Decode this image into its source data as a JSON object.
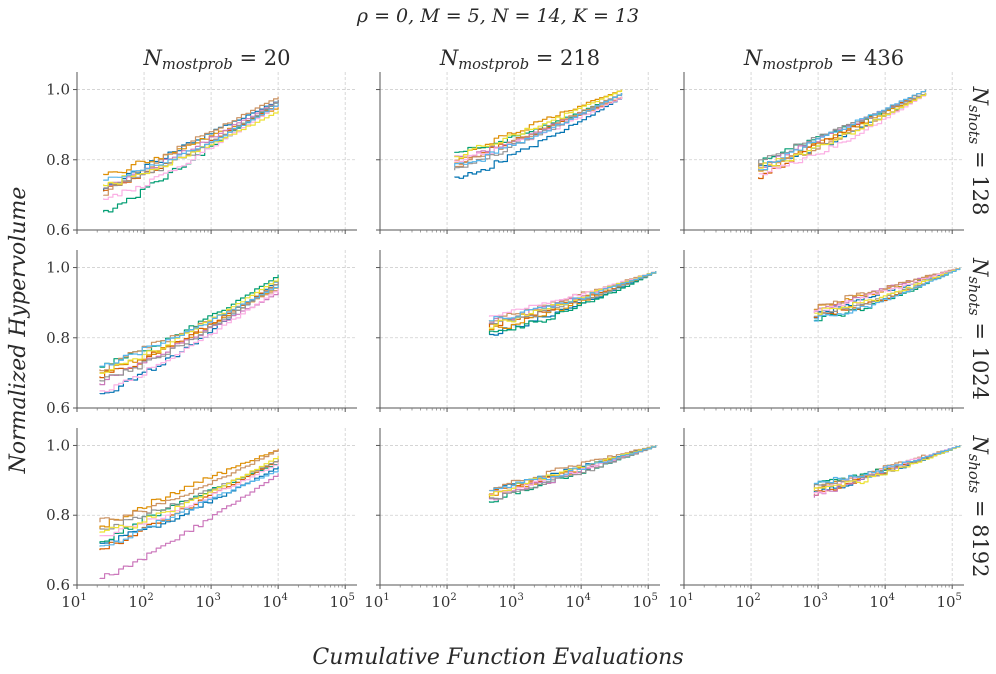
{
  "title": "ρ = 0, M = 5, N = 14, K = 13",
  "xlabel": "Cumulative Function Evaluations",
  "ylabel": "Normalized Hypervolume",
  "col_titles": [
    "N_mostprob = 20",
    "N_mostprob = 218",
    "N_mostprob = 436"
  ],
  "row_titles": [
    "N_shots = 128",
    "N_shots = 1024",
    "N_shots = 8192"
  ],
  "y_ticks": [
    "0.6",
    "0.8",
    "1.0"
  ],
  "x_ticks": [
    "10^1",
    "10^2",
    "10^3",
    "10^4",
    "10^5"
  ],
  "palette": [
    "#0173b2",
    "#de8f05",
    "#029e73",
    "#d55e00",
    "#cc78bc",
    "#ca9161",
    "#fbafe4",
    "#949494",
    "#ece133",
    "#56b4e9"
  ],
  "chart_data": {
    "type": "line",
    "xscale": "log",
    "xlim": [
      10,
      150000
    ],
    "ylim": [
      0.6,
      1.05
    ],
    "grid": true,
    "layout": "3x3 facet grid (rows: N_shots, columns: N_mostprob)",
    "series_per_panel": 10,
    "panels": [
      {
        "row": "N_shots = 128",
        "col": "N_mostprob = 20",
        "x_range": [
          25,
          10000
        ],
        "start_y": [
          0.71,
          0.76,
          0.65,
          0.71,
          0.72,
          0.7,
          0.69,
          0.72,
          0.73,
          0.74
        ],
        "end_y": [
          0.97,
          0.95,
          0.97,
          0.96,
          0.97,
          0.98,
          0.96,
          0.97,
          0.94,
          0.96
        ]
      },
      {
        "row": "N_shots = 128",
        "col": "N_mostprob = 218",
        "x_range": [
          130,
          40000
        ],
        "start_y": [
          0.75,
          0.8,
          0.82,
          0.79,
          0.81,
          0.78,
          0.8,
          0.77,
          0.81,
          0.78
        ],
        "end_y": [
          0.98,
          1.0,
          0.99,
          0.98,
          0.99,
          0.99,
          0.98,
          0.99,
          1.0,
          0.99
        ]
      },
      {
        "row": "N_shots = 128",
        "col": "N_mostprob = 436",
        "x_range": [
          130,
          40000
        ],
        "start_y": [
          0.78,
          0.77,
          0.79,
          0.75,
          0.77,
          0.78,
          0.76,
          0.79,
          0.78,
          0.77
        ],
        "end_y": [
          0.99,
          0.99,
          0.99,
          1.0,
          0.99,
          0.99,
          0.99,
          0.99,
          0.99,
          1.0
        ]
      },
      {
        "row": "N_shots = 1024",
        "col": "N_mostprob = 20",
        "x_range": [
          22,
          10000
        ],
        "start_y": [
          0.64,
          0.7,
          0.72,
          0.69,
          0.67,
          0.71,
          0.65,
          0.68,
          0.7,
          0.72
        ],
        "end_y": [
          0.97,
          0.95,
          0.98,
          0.96,
          0.93,
          0.94,
          0.94,
          0.96,
          0.97,
          0.95
        ]
      },
      {
        "row": "N_shots = 1024",
        "col": "N_mostprob = 218",
        "x_range": [
          430,
          130000
        ],
        "start_y": [
          0.81,
          0.82,
          0.81,
          0.83,
          0.84,
          0.85,
          0.86,
          0.84,
          0.83,
          0.85
        ],
        "end_y": [
          0.99,
          0.99,
          0.99,
          0.99,
          0.99,
          0.99,
          0.99,
          0.99,
          0.99,
          0.99
        ]
      },
      {
        "row": "N_shots = 1024",
        "col": "N_mostprob = 436",
        "x_range": [
          880,
          130000
        ],
        "start_y": [
          0.86,
          0.88,
          0.85,
          0.86,
          0.87,
          0.88,
          0.87,
          0.86,
          0.87,
          0.85
        ],
        "end_y": [
          1.0,
          1.0,
          1.0,
          1.0,
          1.0,
          1.0,
          1.0,
          1.0,
          1.0,
          1.0
        ]
      },
      {
        "row": "N_shots = 8192",
        "col": "N_mostprob = 20",
        "x_range": [
          22,
          10000
        ],
        "start_y": [
          0.72,
          0.76,
          0.72,
          0.7,
          0.62,
          0.78,
          0.74,
          0.76,
          0.75,
          0.71
        ],
        "end_y": [
          0.94,
          0.99,
          0.95,
          0.96,
          0.92,
          0.99,
          0.95,
          0.96,
          0.97,
          0.93
        ]
      },
      {
        "row": "N_shots = 8192",
        "col": "N_mostprob = 218",
        "x_range": [
          430,
          130000
        ],
        "start_y": [
          0.86,
          0.85,
          0.84,
          0.86,
          0.85,
          0.87,
          0.86,
          0.85,
          0.86,
          0.87
        ],
        "end_y": [
          1.0,
          1.0,
          1.0,
          1.0,
          1.0,
          1.0,
          1.0,
          1.0,
          1.0,
          1.0
        ]
      },
      {
        "row": "N_shots = 8192",
        "col": "N_mostprob = 436",
        "x_range": [
          880,
          130000
        ],
        "start_y": [
          0.87,
          0.88,
          0.89,
          0.86,
          0.85,
          0.87,
          0.86,
          0.88,
          0.87,
          0.89
        ],
        "end_y": [
          1.0,
          1.0,
          1.0,
          1.0,
          1.0,
          1.0,
          1.0,
          1.0,
          1.0,
          1.0
        ]
      }
    ]
  }
}
